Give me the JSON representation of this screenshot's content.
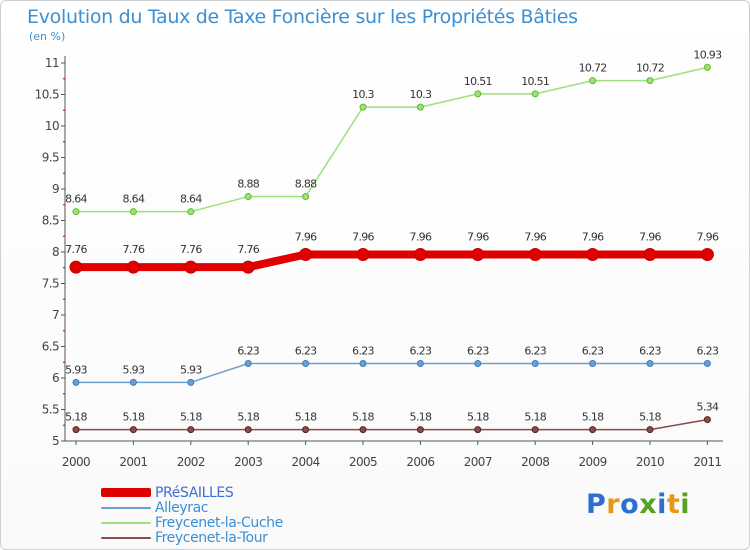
{
  "title": "Evolution du Taux de Taxe Foncière sur les Propriétés Bâties",
  "unit_label": "(en %)",
  "brand": {
    "text": "Proxiti",
    "letters": [
      "P",
      "r",
      "o",
      "x",
      "i",
      "t",
      "i"
    ],
    "colors": [
      "#2d6fcf",
      "#e39a19",
      "#2d6fcf",
      "#57a21f",
      "#2d6fcf",
      "#e39a19",
      "#57a21f"
    ]
  },
  "chart_data": {
    "type": "line",
    "title": "Evolution du Taux de Taxe Foncière sur les Propriétés Bâties",
    "xlabel": "",
    "ylabel": "(en %)",
    "categories": [
      "2000",
      "2001",
      "2002",
      "2003",
      "2004",
      "2005",
      "2006",
      "2007",
      "2008",
      "2009",
      "2010",
      "2011"
    ],
    "ylim": [
      5,
      11
    ],
    "yticks": [
      "5",
      "5.5",
      "6",
      "6.5",
      "7",
      "7.5",
      "8",
      "8.5",
      "9",
      "9.5",
      "10",
      "10.5",
      "11"
    ],
    "grid": false,
    "legend_position": "bottom-left",
    "series": [
      {
        "name": "PRéSAILLES",
        "color": "#e00000",
        "values": [
          7.76,
          7.76,
          7.76,
          7.76,
          7.96,
          7.96,
          7.96,
          7.96,
          7.96,
          7.96,
          7.96,
          7.96
        ],
        "labels": [
          "7.76",
          "7.76",
          "7.76",
          "7.76",
          "7.96",
          "7.96",
          "7.96",
          "7.96",
          "7.96",
          "7.96",
          "7.96",
          "7.96"
        ]
      },
      {
        "name": "Alleyrac",
        "color": "#6e9fcf",
        "values": [
          5.93,
          5.93,
          5.93,
          6.23,
          6.23,
          6.23,
          6.23,
          6.23,
          6.23,
          6.23,
          6.23,
          6.23
        ],
        "labels": [
          "5.93",
          "5.93",
          "5.93",
          "6.23",
          "6.23",
          "6.23",
          "6.23",
          "6.23",
          "6.23",
          "6.23",
          "6.23",
          "6.23"
        ]
      },
      {
        "name": "Freycenet-la-Cuche",
        "color": "#9fe07a",
        "values": [
          8.64,
          8.64,
          8.64,
          8.88,
          8.88,
          10.3,
          10.3,
          10.51,
          10.51,
          10.72,
          10.72,
          10.93
        ],
        "labels": [
          "8.64",
          "8.64",
          "8.64",
          "8.88",
          "8.88",
          "10.3",
          "10.3",
          "10.51",
          "10.51",
          "10.72",
          "10.72",
          "10.93"
        ]
      },
      {
        "name": "Freycenet-la-Tour",
        "color": "#8a4b4b",
        "values": [
          5.18,
          5.18,
          5.18,
          5.18,
          5.18,
          5.18,
          5.18,
          5.18,
          5.18,
          5.18,
          5.18,
          5.34
        ],
        "labels": [
          "5.18",
          "5.18",
          "5.18",
          "5.18",
          "5.18",
          "5.18",
          "5.18",
          "5.18",
          "5.18",
          "5.18",
          "5.18",
          "5.34"
        ]
      }
    ]
  }
}
